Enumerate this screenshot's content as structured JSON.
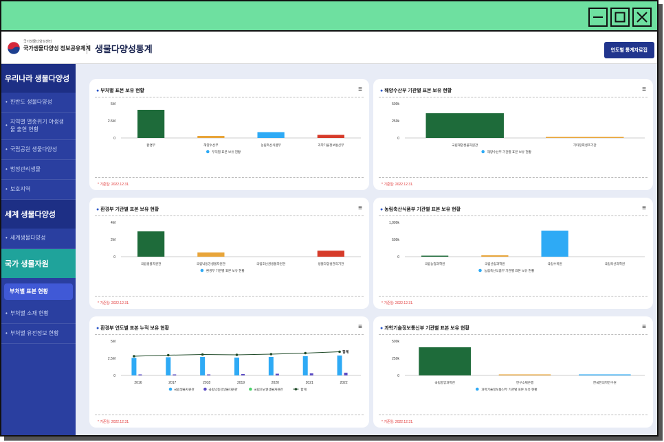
{
  "header": {
    "org_sub": "국가생물다양성센터",
    "org_name": "국가생물다양성 정보공유체계",
    "page_title": "생물다양성통계",
    "button": "연도별 통계자료집"
  },
  "sidebar": {
    "sec1": "우리나라 생물다양성",
    "items1": [
      "한반도 생물다양성",
      "지역별 멸종위기 야생생물 출현 현황",
      "국립공원 생물다양성",
      "법정관리생물",
      "보호지역"
    ],
    "sec2": "세계 생물다양성",
    "items2": [
      "세계생물다양성"
    ],
    "sec3": "국가 생물자원",
    "items3": [
      "부처별 표본 현황",
      "부처별 소재 현황",
      "부처별 유전정보 현황"
    ]
  },
  "colors": {
    "green": "#1e6b3a",
    "orange": "#e8a53a",
    "blue": "#2eaaf5",
    "red": "#d63b2a",
    "purple": "#5b4bc4",
    "light_green": "#4cd36b",
    "line": "#1f4a28"
  },
  "note": "* 기준일: 2022.12.31.",
  "chart_data": [
    {
      "type": "bar",
      "title": "부처별 표본 보유 현황",
      "categories": [
        "환경부",
        "해양수산부",
        "농림축산식품부",
        "과학기술정보통신부"
      ],
      "values": [
        4100000,
        300000,
        850000,
        450000
      ],
      "colors": [
        "green",
        "orange",
        "blue",
        "red"
      ],
      "ylim": [
        0,
        5000000
      ],
      "yticks": [
        "0",
        "2.5M",
        "5M"
      ],
      "legend": "부처별 표본 보유 현황"
    },
    {
      "type": "bar",
      "title": "해양수산부 기관별 표본 보유 현황",
      "categories": [
        "국립해양생물자원관",
        "기타정회생조기관"
      ],
      "values": [
        360000,
        10000
      ],
      "colors": [
        "green",
        "orange"
      ],
      "ylim": [
        0,
        500000
      ],
      "yticks": [
        "0",
        "250k",
        "500k"
      ],
      "legend": "해양수산부 기관별 표본 보유 현황"
    },
    {
      "type": "bar",
      "title": "환경부 기관별 표본 보유 현황",
      "categories": [
        "국립생물자원관",
        "국립낙동강생물자원관",
        "국립호남권생물자원관",
        "생물다양성관리기관"
      ],
      "values": [
        2950000,
        500000,
        0,
        700000
      ],
      "colors": [
        "green",
        "orange",
        "blue",
        "red"
      ],
      "ylim": [
        0,
        4000000
      ],
      "yticks": [
        "0",
        "2M",
        "4M"
      ],
      "legend": "환경부 기관별 표본 보유 현황"
    },
    {
      "type": "bar",
      "title": "농림축산식품부 기관별 표본 보유 현황",
      "categories": [
        "국립농업과학원",
        "국립산림과학원",
        "국립수목원",
        "국립축산과학원"
      ],
      "values": [
        20000,
        40000,
        760000,
        0
      ],
      "colors": [
        "green",
        "orange",
        "blue",
        "red"
      ],
      "ylim": [
        0,
        1000000
      ],
      "yticks": [
        "0",
        "500k",
        "1,000k"
      ],
      "legend": "농림축산식품부 기관별 표본 보유 현황"
    },
    {
      "type": "bar",
      "title": "환경부 연도별 표본 누적 보유 현황",
      "categories": [
        "2016",
        "2017",
        "2018",
        "2019",
        "2020",
        "2021",
        "2022"
      ],
      "series": [
        {
          "name": "국립생물자원관",
          "values": [
            2550000,
            2650000,
            2700000,
            2600000,
            2700000,
            2800000,
            2900000
          ],
          "color": "blue"
        },
        {
          "name": "국립낙동강생물자원관",
          "values": [
            50000,
            100000,
            150000,
            200000,
            250000,
            300000,
            400000
          ],
          "color": "purple"
        },
        {
          "name": "국립호남권생물자원관",
          "values": [
            0,
            0,
            0,
            0,
            0,
            0,
            0
          ],
          "color": "light_green"
        }
      ],
      "line": {
        "name": "합계",
        "values": [
          2800000,
          2950000,
          3050000,
          3000000,
          3100000,
          3250000,
          3450000
        ],
        "label": "합계"
      },
      "ylim": [
        0,
        5000000
      ],
      "yticks": [
        "0",
        "2.5M",
        "5M"
      ]
    },
    {
      "type": "bar",
      "title": "과학기술정보통신부 기관별 표본 보유 현황",
      "categories": [
        "국립중앙과학관",
        "연구소재은행",
        "한국한의학연구원"
      ],
      "values": [
        410000,
        8000,
        3000
      ],
      "colors": [
        "green",
        "orange",
        "blue"
      ],
      "ylim": [
        0,
        500000
      ],
      "yticks": [
        "0",
        "250k",
        "500k"
      ],
      "legend": "과학기술정보통신부 기관별 표본 보유 현황"
    }
  ]
}
